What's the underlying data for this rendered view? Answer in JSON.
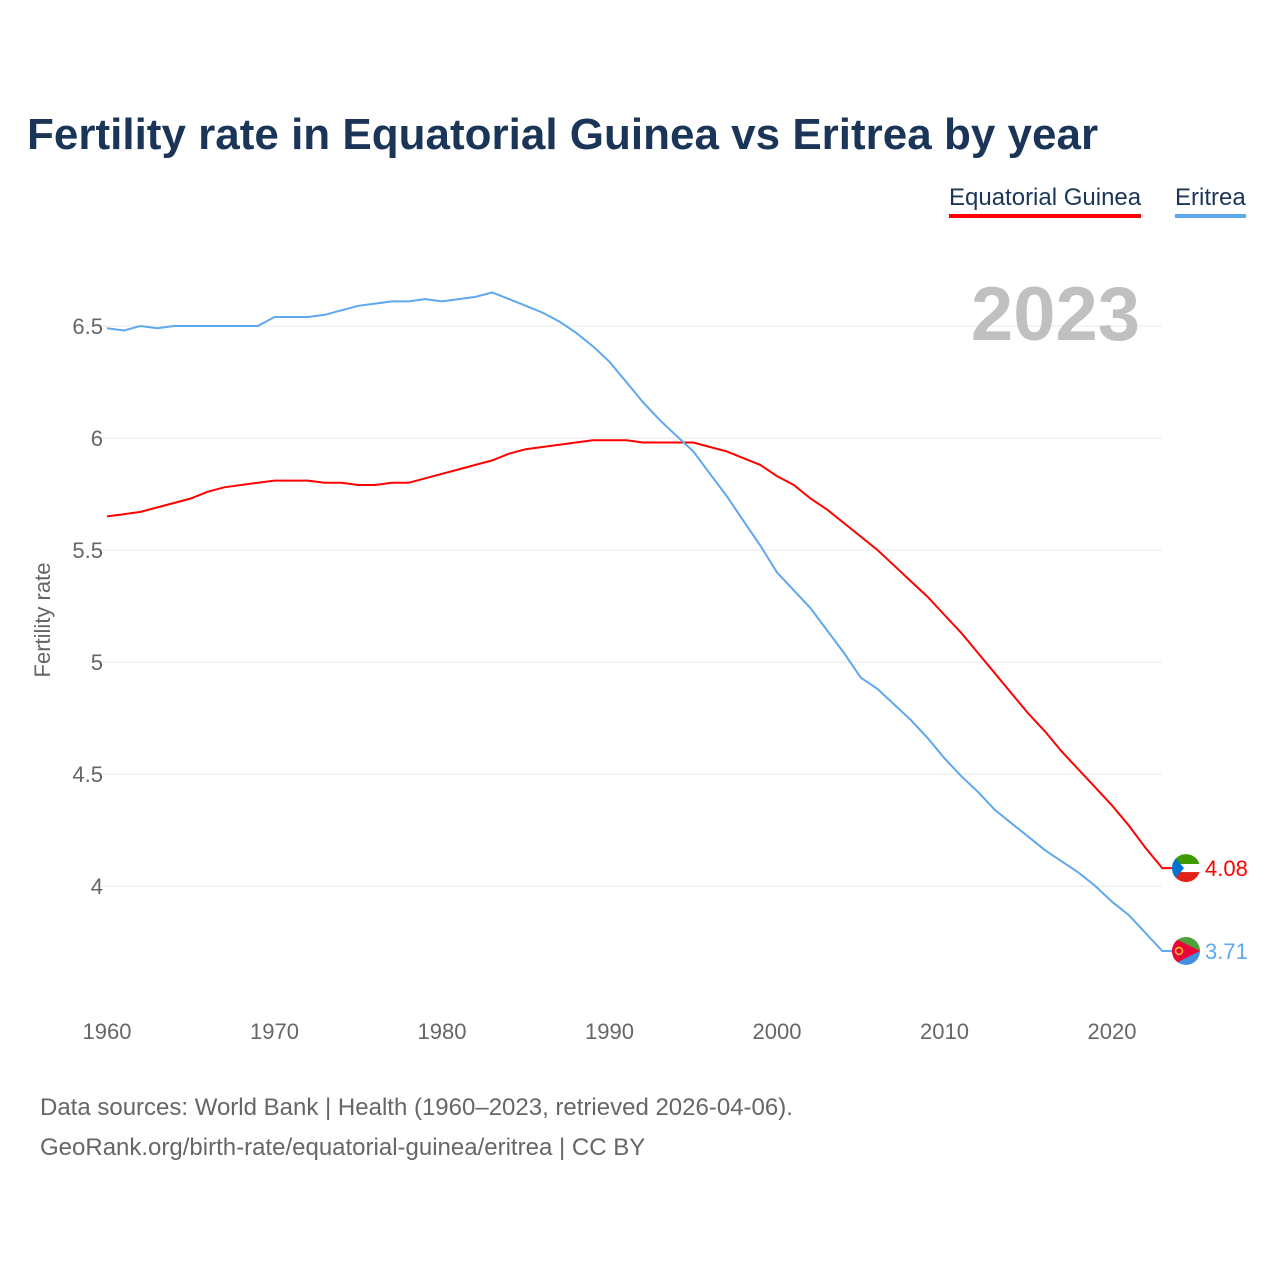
{
  "chart_data": {
    "type": "line",
    "title": "Fertility rate in Equatorial Guinea vs Eritrea by year",
    "xlabel": "",
    "ylabel": "Fertility rate",
    "year_label": "2023",
    "xlim": [
      1960,
      2023
    ],
    "ylim": [
      3.6,
      6.7
    ],
    "x_ticks": [
      "1960",
      "1970",
      "1980",
      "1990",
      "2000",
      "2010",
      "2020"
    ],
    "y_ticks": [
      "4",
      "4.5",
      "5",
      "5.5",
      "6",
      "6.5"
    ],
    "grid": true,
    "legend_placement": "top-right",
    "x": [
      1960,
      1961,
      1962,
      1963,
      1964,
      1965,
      1966,
      1967,
      1968,
      1969,
      1970,
      1971,
      1972,
      1973,
      1974,
      1975,
      1976,
      1977,
      1978,
      1979,
      1980,
      1981,
      1982,
      1983,
      1984,
      1985,
      1986,
      1987,
      1988,
      1989,
      1990,
      1991,
      1992,
      1993,
      1994,
      1995,
      1996,
      1997,
      1998,
      1999,
      2000,
      2001,
      2002,
      2003,
      2004,
      2005,
      2006,
      2007,
      2008,
      2009,
      2010,
      2011,
      2012,
      2013,
      2014,
      2015,
      2016,
      2017,
      2018,
      2019,
      2020,
      2021,
      2022,
      2023
    ],
    "series": [
      {
        "name": "Equatorial Guinea",
        "color": "#ff0000",
        "end_label": "4.08",
        "values": [
          5.65,
          5.66,
          5.67,
          5.69,
          5.71,
          5.73,
          5.76,
          5.78,
          5.79,
          5.8,
          5.81,
          5.81,
          5.81,
          5.8,
          5.8,
          5.79,
          5.79,
          5.8,
          5.8,
          5.82,
          5.84,
          5.86,
          5.88,
          5.9,
          5.93,
          5.95,
          5.96,
          5.97,
          5.98,
          5.99,
          5.99,
          5.99,
          5.98,
          5.98,
          5.98,
          5.98,
          5.96,
          5.94,
          5.91,
          5.88,
          5.83,
          5.79,
          5.73,
          5.68,
          5.62,
          5.56,
          5.5,
          5.43,
          5.36,
          5.29,
          5.21,
          5.13,
          5.04,
          4.95,
          4.86,
          4.77,
          4.69,
          4.6,
          4.52,
          4.44,
          4.36,
          4.27,
          4.17,
          4.08
        ]
      },
      {
        "name": "Eritrea",
        "color": "#5ea8ee",
        "end_label": "3.71",
        "values": [
          6.49,
          6.48,
          6.5,
          6.49,
          6.5,
          6.5,
          6.5,
          6.5,
          6.5,
          6.5,
          6.54,
          6.54,
          6.54,
          6.55,
          6.57,
          6.59,
          6.6,
          6.61,
          6.61,
          6.62,
          6.61,
          6.62,
          6.63,
          6.65,
          6.62,
          6.59,
          6.56,
          6.52,
          6.47,
          6.41,
          6.34,
          6.25,
          6.16,
          6.08,
          6.01,
          5.94,
          5.84,
          5.74,
          5.63,
          5.52,
          5.4,
          5.32,
          5.24,
          5.14,
          5.04,
          4.93,
          4.88,
          4.81,
          4.74,
          4.66,
          4.57,
          4.49,
          4.42,
          4.34,
          4.28,
          4.22,
          4.16,
          4.11,
          4.06,
          4.0,
          3.93,
          3.87,
          3.79,
          3.71
        ]
      }
    ]
  },
  "footer": {
    "line1": "Data sources: World Bank | Health (1960–2023, retrieved 2026-04-06).",
    "line2": "GeoRank.org/birth-rate/equatorial-guinea/eritrea | CC BY"
  }
}
